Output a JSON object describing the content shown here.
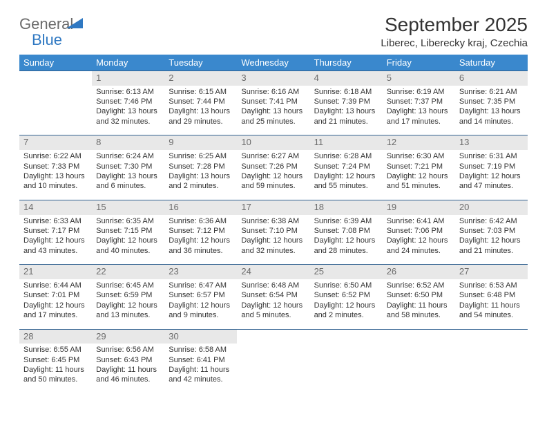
{
  "logo": {
    "text1": "General",
    "text2": "Blue"
  },
  "title": "September 2025",
  "location": "Liberec, Liberecky kraj, Czechia",
  "header_bg": "#3a88cd",
  "daynum_bg": "#e8e8e8",
  "row_border": "#2f5f8f",
  "weekdays": [
    "Sunday",
    "Monday",
    "Tuesday",
    "Wednesday",
    "Thursday",
    "Friday",
    "Saturday"
  ],
  "start_offset": 1,
  "days": [
    {
      "n": "1",
      "sunrise": "6:13 AM",
      "sunset": "7:46 PM",
      "daylight": "13 hours and 32 minutes."
    },
    {
      "n": "2",
      "sunrise": "6:15 AM",
      "sunset": "7:44 PM",
      "daylight": "13 hours and 29 minutes."
    },
    {
      "n": "3",
      "sunrise": "6:16 AM",
      "sunset": "7:41 PM",
      "daylight": "13 hours and 25 minutes."
    },
    {
      "n": "4",
      "sunrise": "6:18 AM",
      "sunset": "7:39 PM",
      "daylight": "13 hours and 21 minutes."
    },
    {
      "n": "5",
      "sunrise": "6:19 AM",
      "sunset": "7:37 PM",
      "daylight": "13 hours and 17 minutes."
    },
    {
      "n": "6",
      "sunrise": "6:21 AM",
      "sunset": "7:35 PM",
      "daylight": "13 hours and 14 minutes."
    },
    {
      "n": "7",
      "sunrise": "6:22 AM",
      "sunset": "7:33 PM",
      "daylight": "13 hours and 10 minutes."
    },
    {
      "n": "8",
      "sunrise": "6:24 AM",
      "sunset": "7:30 PM",
      "daylight": "13 hours and 6 minutes."
    },
    {
      "n": "9",
      "sunrise": "6:25 AM",
      "sunset": "7:28 PM",
      "daylight": "13 hours and 2 minutes."
    },
    {
      "n": "10",
      "sunrise": "6:27 AM",
      "sunset": "7:26 PM",
      "daylight": "12 hours and 59 minutes."
    },
    {
      "n": "11",
      "sunrise": "6:28 AM",
      "sunset": "7:24 PM",
      "daylight": "12 hours and 55 minutes."
    },
    {
      "n": "12",
      "sunrise": "6:30 AM",
      "sunset": "7:21 PM",
      "daylight": "12 hours and 51 minutes."
    },
    {
      "n": "13",
      "sunrise": "6:31 AM",
      "sunset": "7:19 PM",
      "daylight": "12 hours and 47 minutes."
    },
    {
      "n": "14",
      "sunrise": "6:33 AM",
      "sunset": "7:17 PM",
      "daylight": "12 hours and 43 minutes."
    },
    {
      "n": "15",
      "sunrise": "6:35 AM",
      "sunset": "7:15 PM",
      "daylight": "12 hours and 40 minutes."
    },
    {
      "n": "16",
      "sunrise": "6:36 AM",
      "sunset": "7:12 PM",
      "daylight": "12 hours and 36 minutes."
    },
    {
      "n": "17",
      "sunrise": "6:38 AM",
      "sunset": "7:10 PM",
      "daylight": "12 hours and 32 minutes."
    },
    {
      "n": "18",
      "sunrise": "6:39 AM",
      "sunset": "7:08 PM",
      "daylight": "12 hours and 28 minutes."
    },
    {
      "n": "19",
      "sunrise": "6:41 AM",
      "sunset": "7:06 PM",
      "daylight": "12 hours and 24 minutes."
    },
    {
      "n": "20",
      "sunrise": "6:42 AM",
      "sunset": "7:03 PM",
      "daylight": "12 hours and 21 minutes."
    },
    {
      "n": "21",
      "sunrise": "6:44 AM",
      "sunset": "7:01 PM",
      "daylight": "12 hours and 17 minutes."
    },
    {
      "n": "22",
      "sunrise": "6:45 AM",
      "sunset": "6:59 PM",
      "daylight": "12 hours and 13 minutes."
    },
    {
      "n": "23",
      "sunrise": "6:47 AM",
      "sunset": "6:57 PM",
      "daylight": "12 hours and 9 minutes."
    },
    {
      "n": "24",
      "sunrise": "6:48 AM",
      "sunset": "6:54 PM",
      "daylight": "12 hours and 5 minutes."
    },
    {
      "n": "25",
      "sunrise": "6:50 AM",
      "sunset": "6:52 PM",
      "daylight": "12 hours and 2 minutes."
    },
    {
      "n": "26",
      "sunrise": "6:52 AM",
      "sunset": "6:50 PM",
      "daylight": "11 hours and 58 minutes."
    },
    {
      "n": "27",
      "sunrise": "6:53 AM",
      "sunset": "6:48 PM",
      "daylight": "11 hours and 54 minutes."
    },
    {
      "n": "28",
      "sunrise": "6:55 AM",
      "sunset": "6:45 PM",
      "daylight": "11 hours and 50 minutes."
    },
    {
      "n": "29",
      "sunrise": "6:56 AM",
      "sunset": "6:43 PM",
      "daylight": "11 hours and 46 minutes."
    },
    {
      "n": "30",
      "sunrise": "6:58 AM",
      "sunset": "6:41 PM",
      "daylight": "11 hours and 42 minutes."
    }
  ],
  "labels": {
    "sunrise": "Sunrise:",
    "sunset": "Sunset:",
    "daylight": "Daylight:"
  }
}
